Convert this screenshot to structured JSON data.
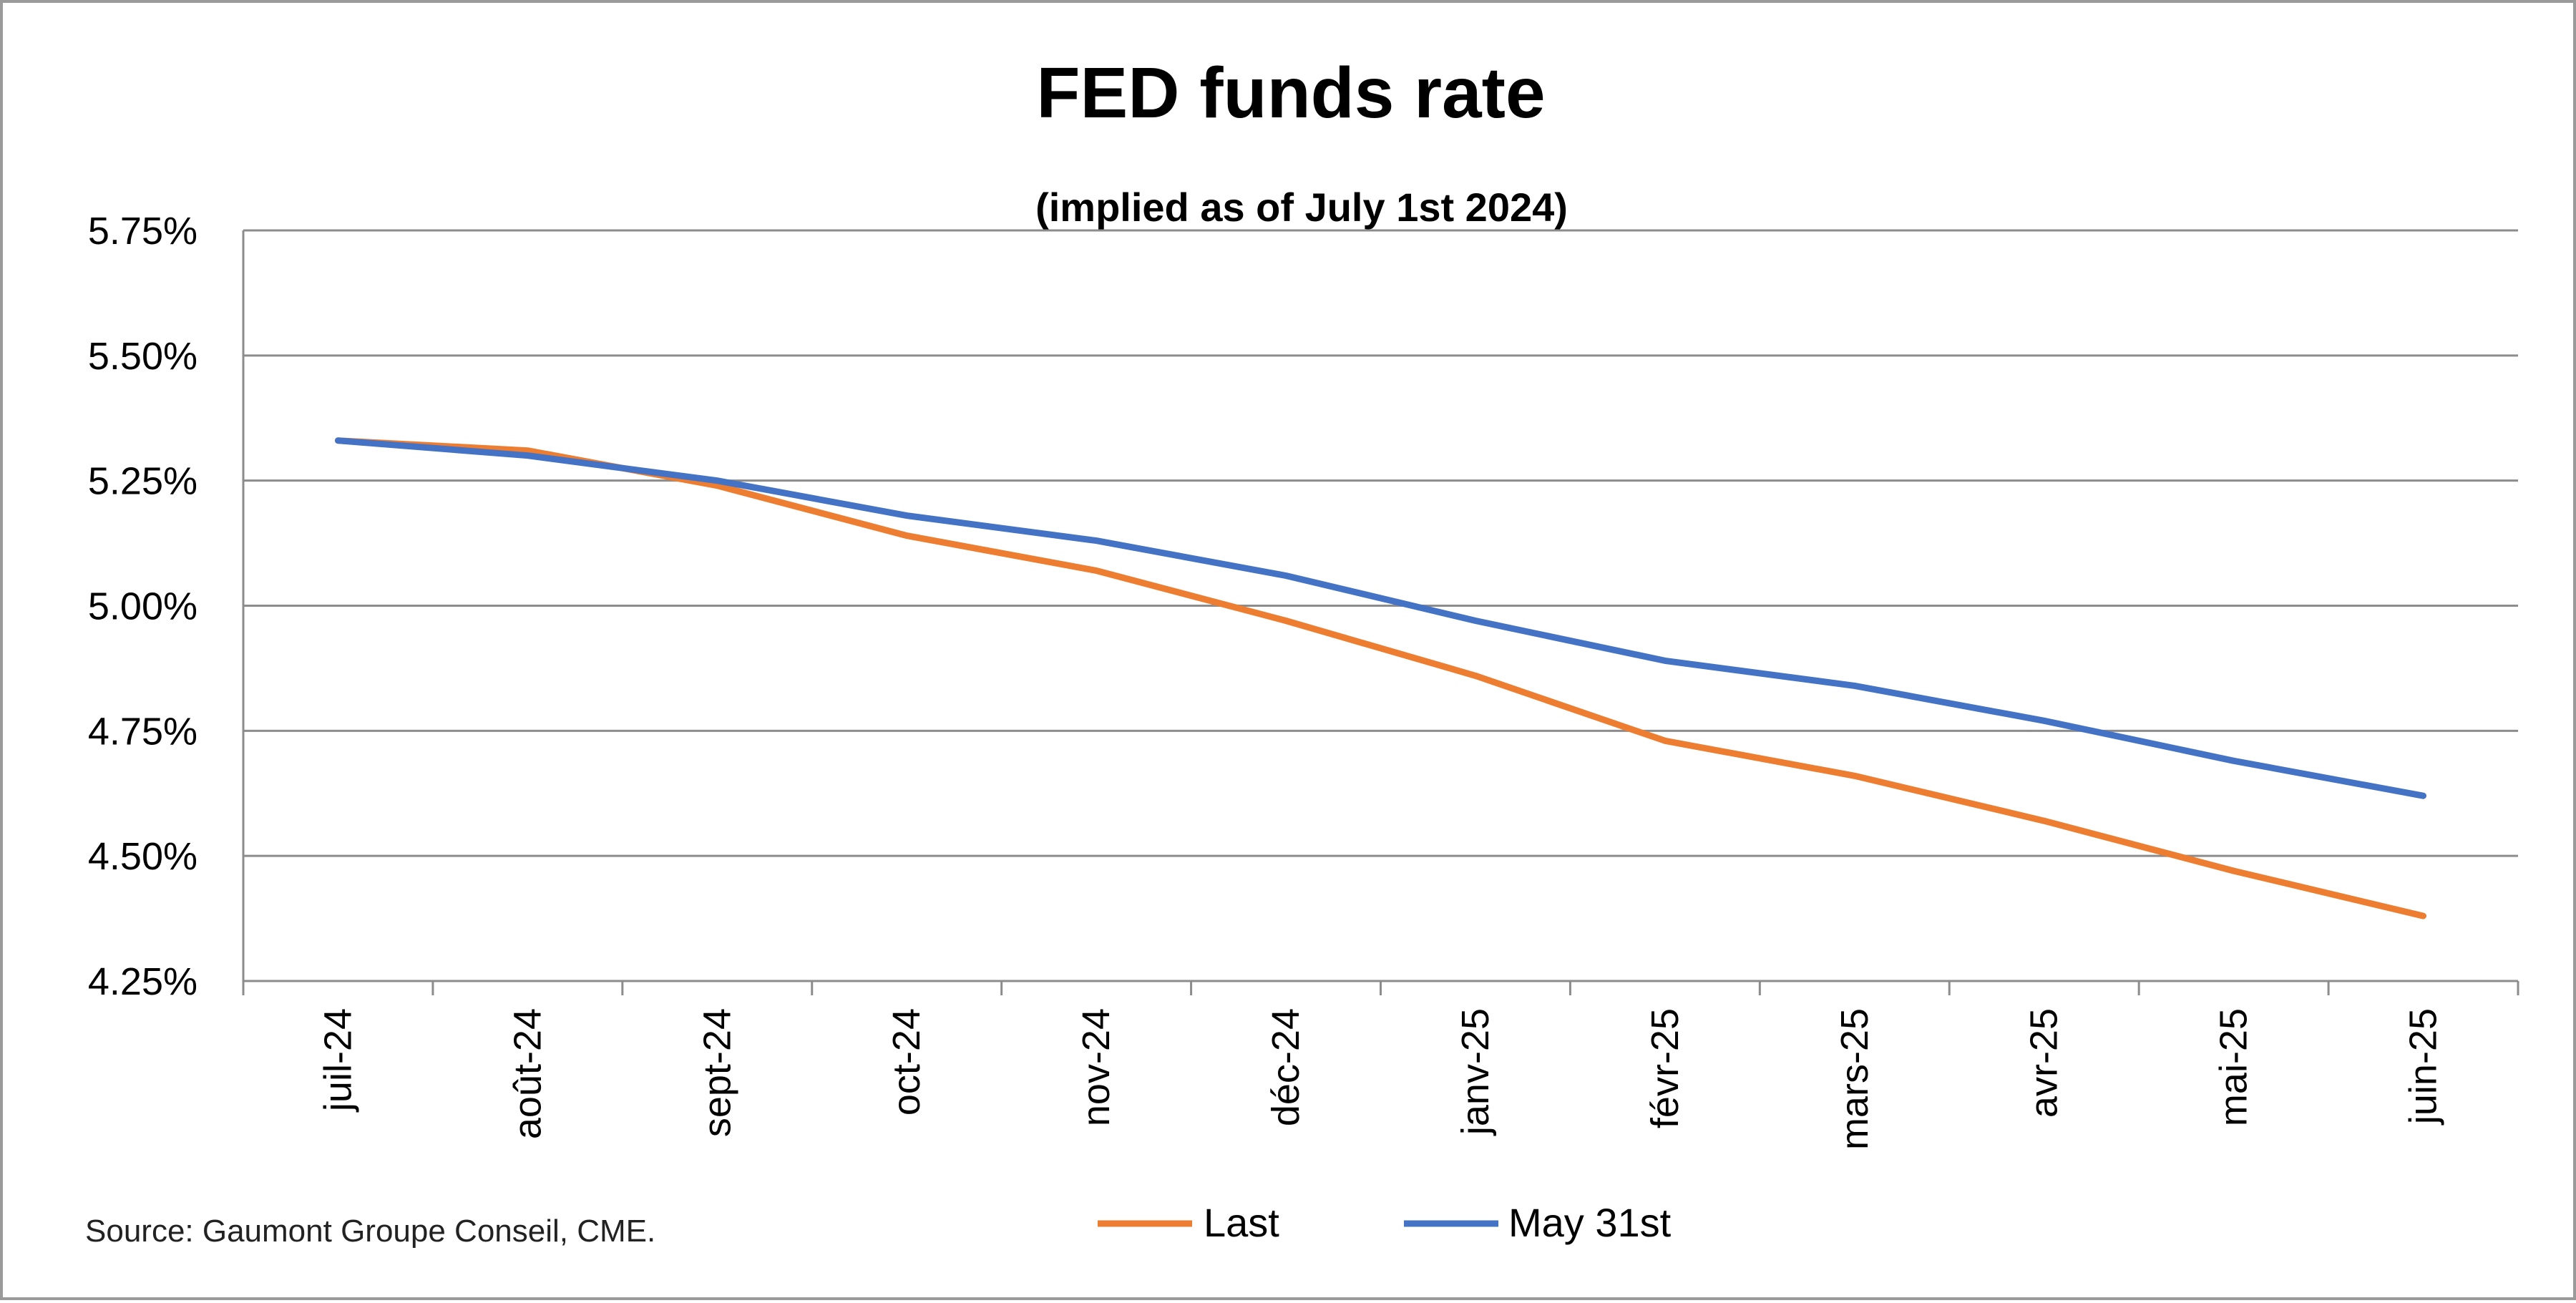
{
  "chart_data": {
    "type": "line",
    "title": "FED funds rate",
    "subtitle": "(implied as of July 1st 2024)",
    "categories": [
      "juil-24",
      "août-24",
      "sept-24",
      "oct-24",
      "nov-24",
      "déc-24",
      "janv-25",
      "févr-25",
      "mars-25",
      "avr-25",
      "mai-25",
      "juin-25"
    ],
    "series": [
      {
        "name": "Last",
        "color": "#ED7D31",
        "values": [
          5.33,
          5.31,
          5.24,
          5.14,
          5.07,
          4.97,
          4.86,
          4.73,
          4.66,
          4.57,
          4.47,
          4.38
        ]
      },
      {
        "name": "May 31st",
        "color": "#4472C4",
        "values": [
          5.33,
          5.3,
          5.25,
          5.18,
          5.13,
          5.06,
          4.97,
          4.89,
          4.84,
          4.77,
          4.69,
          4.62
        ]
      }
    ],
    "yticks": [
      "5.75%",
      "5.50%",
      "5.25%",
      "5.00%",
      "4.75%",
      "4.50%",
      "4.25%"
    ],
    "ytick_values": [
      5.75,
      5.5,
      5.25,
      5.0,
      4.75,
      4.5,
      4.25
    ],
    "ylim": [
      4.25,
      5.75
    ],
    "grid": true,
    "legend_position": "bottom",
    "source": "Source: Gaumont Groupe Conseil, CME."
  }
}
